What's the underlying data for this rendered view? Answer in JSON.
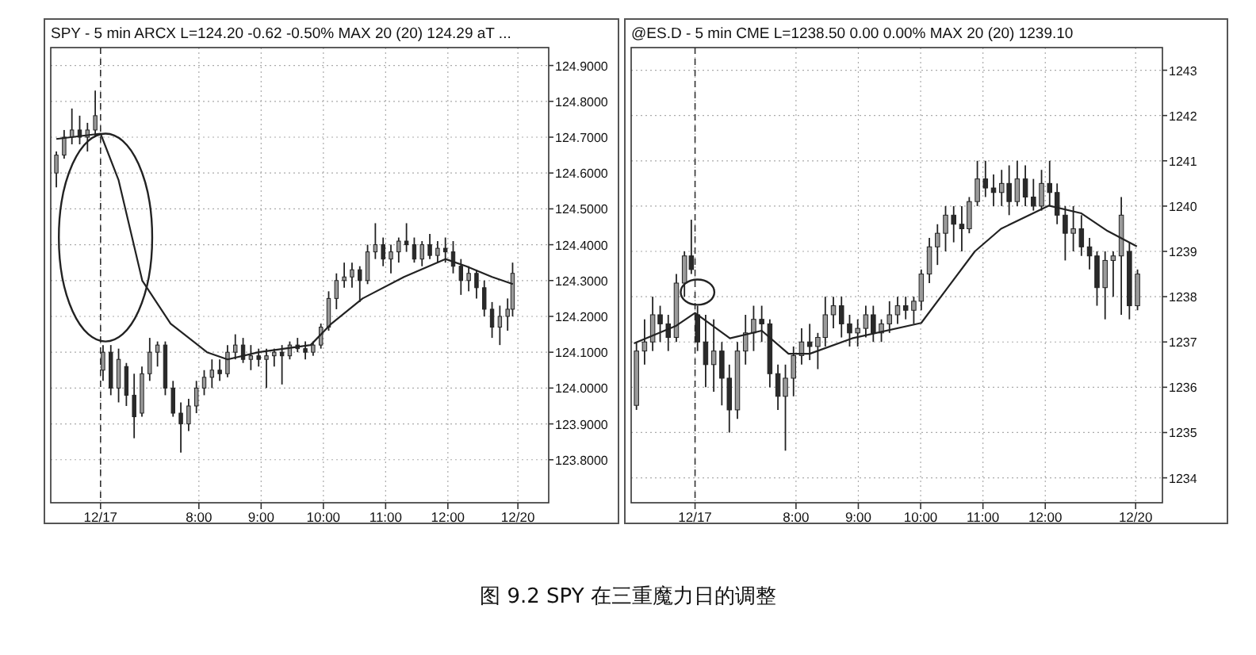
{
  "chart_data": [
    {
      "type": "candlestick",
      "title": "SPY - 5 min ARCX L=124.20 -0.62 -0.50% MAX 20 (20) 124.29 aT ...",
      "xlim": [
        5.62,
        13.62
      ],
      "ylim": [
        123.68,
        124.95
      ],
      "xticks": [
        {
          "value": 6.42,
          "label": "12/17"
        },
        {
          "value": 8,
          "label": "8:00"
        },
        {
          "value": 9,
          "label": "9:00"
        },
        {
          "value": 10,
          "label": "10:00"
        },
        {
          "value": 11,
          "label": "11:00"
        },
        {
          "value": 12,
          "label": "12:00"
        },
        {
          "value": 13.125,
          "label": "12/20"
        }
      ],
      "yticks": [
        {
          "value": 123.8,
          "label": "123.8000"
        },
        {
          "value": 123.9,
          "label": "123.9000"
        },
        {
          "value": 124,
          "label": "124.0000"
        },
        {
          "value": 124.1,
          "label": "124.1000"
        },
        {
          "value": 124.2,
          "label": "124.2000"
        },
        {
          "value": 124.3,
          "label": "124.3000"
        },
        {
          "value": 124.4,
          "label": "124.4000"
        },
        {
          "value": 124.5,
          "label": "124.5000"
        },
        {
          "value": 124.6,
          "label": "124.6000"
        },
        {
          "value": 124.7,
          "label": "124.7000"
        },
        {
          "value": 124.8,
          "label": "124.8000"
        },
        {
          "value": 124.9,
          "label": "124.9000"
        }
      ],
      "grid": true,
      "ref_lines": [
        {
          "axis": "x",
          "value": 6.42,
          "label": null,
          "line_style": "dashed",
          "color": "#333333"
        }
      ],
      "annotations": [
        "图 9.2 SPY 在三重魔力日的调整"
      ],
      "series": [
        {
          "type": "candlestick",
          "x": [
            5.71,
            5.835,
            5.96,
            6.085,
            6.21,
            6.335,
            6.46,
            6.585,
            6.71,
            6.835,
            6.96,
            7.085,
            7.21,
            7.335,
            7.46,
            7.585,
            7.71,
            7.835,
            7.96,
            8.085,
            8.21,
            8.335,
            8.46,
            8.585,
            8.71,
            8.835,
            8.96,
            9.085,
            9.21,
            9.335,
            9.46,
            9.585,
            9.71,
            9.835,
            9.96,
            10.085,
            10.21,
            10.335,
            10.46,
            10.585,
            10.71,
            10.835,
            10.96,
            11.085,
            11.21,
            11.335,
            11.46,
            11.585,
            11.71,
            11.835,
            11.96,
            12.085,
            12.21,
            12.335,
            12.46,
            12.585,
            12.71,
            12.835,
            12.96,
            13.04
          ],
          "ohlc": [
            [
              124.6,
              124.66,
              124.56,
              124.65
            ],
            [
              124.65,
              124.72,
              124.64,
              124.7
            ],
            [
              124.7,
              124.78,
              124.68,
              124.72
            ],
            [
              124.72,
              124.76,
              124.68,
              124.7
            ],
            [
              124.7,
              124.74,
              124.66,
              124.72
            ],
            [
              124.72,
              124.83,
              124.7,
              124.76
            ],
            [
              124.05,
              124.12,
              124.02,
              124.1
            ],
            [
              124.1,
              124.12,
              123.98,
              124.0
            ],
            [
              124.0,
              124.11,
              123.96,
              124.08
            ],
            [
              124.06,
              124.07,
              123.95,
              123.98
            ],
            [
              123.98,
              124.04,
              123.86,
              123.92
            ],
            [
              123.93,
              124.06,
              123.92,
              124.04
            ],
            [
              124.04,
              124.14,
              124.02,
              124.1
            ],
            [
              124.1,
              124.13,
              124.06,
              124.12
            ],
            [
              124.12,
              124.13,
              123.98,
              124.0
            ],
            [
              124.0,
              124.02,
              123.92,
              123.93
            ],
            [
              123.93,
              123.96,
              123.82,
              123.9
            ],
            [
              123.9,
              123.97,
              123.88,
              123.95
            ],
            [
              123.95,
              124.02,
              123.93,
              124.0
            ],
            [
              124.0,
              124.05,
              123.98,
              124.03
            ],
            [
              124.03,
              124.08,
              124.0,
              124.05
            ],
            [
              124.05,
              124.08,
              124.02,
              124.04
            ],
            [
              124.04,
              124.12,
              124.03,
              124.1
            ],
            [
              124.1,
              124.15,
              124.08,
              124.12
            ],
            [
              124.12,
              124.14,
              124.07,
              124.08
            ],
            [
              124.08,
              124.12,
              124.05,
              124.09
            ],
            [
              124.09,
              124.11,
              124.06,
              124.08
            ],
            [
              124.08,
              124.11,
              124.0,
              124.09
            ],
            [
              124.09,
              124.11,
              124.06,
              124.1
            ],
            [
              124.1,
              124.12,
              124.01,
              124.09
            ],
            [
              124.09,
              124.13,
              124.08,
              124.12
            ],
            [
              124.12,
              124.14,
              124.1,
              124.11
            ],
            [
              124.11,
              124.13,
              124.08,
              124.1
            ],
            [
              124.1,
              124.13,
              124.09,
              124.12
            ],
            [
              124.12,
              124.18,
              124.11,
              124.17
            ],
            [
              124.17,
              124.27,
              124.16,
              124.25
            ],
            [
              124.25,
              124.32,
              124.22,
              124.3
            ],
            [
              124.3,
              124.35,
              124.28,
              124.31
            ],
            [
              124.31,
              124.35,
              124.28,
              124.33
            ],
            [
              124.33,
              124.34,
              124.24,
              124.3
            ],
            [
              124.3,
              124.4,
              124.29,
              124.38
            ],
            [
              124.38,
              124.46,
              124.36,
              124.4
            ],
            [
              124.4,
              124.42,
              124.34,
              124.36
            ],
            [
              124.36,
              124.4,
              124.32,
              124.38
            ],
            [
              124.38,
              124.42,
              124.35,
              124.41
            ],
            [
              124.41,
              124.46,
              124.38,
              124.4
            ],
            [
              124.4,
              124.42,
              124.35,
              124.36
            ],
            [
              124.36,
              124.41,
              124.34,
              124.4
            ],
            [
              124.4,
              124.43,
              124.36,
              124.37
            ],
            [
              124.37,
              124.41,
              124.35,
              124.39
            ],
            [
              124.39,
              124.42,
              124.35,
              124.38
            ],
            [
              124.38,
              124.41,
              124.32,
              124.34
            ],
            [
              124.34,
              124.36,
              124.26,
              124.3
            ],
            [
              124.3,
              124.34,
              124.27,
              124.32
            ],
            [
              124.32,
              124.33,
              124.25,
              124.28
            ],
            [
              124.28,
              124.3,
              124.2,
              124.22
            ],
            [
              124.22,
              124.24,
              124.14,
              124.17
            ],
            [
              124.17,
              124.23,
              124.12,
              124.2
            ],
            [
              124.2,
              124.25,
              124.16,
              124.22
            ],
            [
              124.22,
              124.35,
              124.2,
              124.32
            ]
          ]
        },
        {
          "type": "line",
          "color": "#222222",
          "x": [
            5.71,
            6.42,
            6.71,
            7.09,
            7.545,
            8.13,
            8.46,
            8.96,
            9.795,
            10.13,
            10.63,
            11.295,
            11.96,
            12.295,
            12.71,
            13.045
          ],
          "values": [
            124.695,
            124.71,
            124.58,
            124.3,
            124.18,
            124.1,
            124.08,
            124.1,
            124.12,
            124.18,
            124.25,
            124.31,
            124.36,
            124.34,
            124.31,
            124.29
          ]
        }
      ]
    },
    {
      "type": "candlestick",
      "title": "@ES.D - 5 min CME L=1238.50 0.00 0.00% MAX 20 (20) 1239.10",
      "xlim": [
        5.355,
        13.88
      ],
      "ylim": [
        1233.45,
        1243.5
      ],
      "xticks": [
        {
          "value": 6.38,
          "label": "12/17"
        },
        {
          "value": 8,
          "label": "8:00"
        },
        {
          "value": 9,
          "label": "9:00"
        },
        {
          "value": 10,
          "label": "10:00"
        },
        {
          "value": 11,
          "label": "11:00"
        },
        {
          "value": 12,
          "label": "12:00"
        },
        {
          "value": 13.45,
          "label": "12/20"
        }
      ],
      "yticks": [
        1234,
        1235,
        1236,
        1237,
        1238,
        1239,
        1240,
        1241,
        1242,
        1243
      ],
      "grid": true,
      "ref_lines": [
        {
          "axis": "x",
          "value": 6.38,
          "label": null,
          "line_style": "dashed",
          "color": "#333333"
        }
      ],
      "series": [
        {
          "type": "candlestick",
          "x": [
            5.44,
            5.57,
            5.7,
            5.82,
            5.95,
            6.08,
            6.21,
            6.32,
            6.42,
            6.55,
            6.68,
            6.81,
            6.93,
            7.06,
            7.19,
            7.32,
            7.45,
            7.58,
            7.71,
            7.83,
            7.96,
            8.09,
            8.22,
            8.35,
            8.47,
            8.6,
            8.73,
            8.86,
            8.99,
            9.12,
            9.24,
            9.37,
            9.5,
            9.63,
            9.76,
            9.89,
            10.01,
            10.14,
            10.27,
            10.4,
            10.53,
            10.66,
            10.78,
            10.91,
            11.04,
            11.17,
            11.3,
            11.42,
            11.55,
            11.68,
            11.81,
            11.94,
            12.07,
            12.19,
            12.32,
            12.45,
            12.58,
            12.71,
            12.83,
            12.96,
            13.09,
            13.22,
            13.35,
            13.48
          ],
          "ohlc": [
            [
              1235.6,
              1237.0,
              1235.5,
              1236.8
            ],
            [
              1236.8,
              1237.5,
              1236.5,
              1237.0
            ],
            [
              1237.0,
              1238.0,
              1236.8,
              1237.6
            ],
            [
              1237.6,
              1237.8,
              1237.0,
              1237.4
            ],
            [
              1237.4,
              1237.6,
              1236.8,
              1237.1
            ],
            [
              1237.1,
              1238.5,
              1237.0,
              1238.3
            ],
            [
              1238.3,
              1239.0,
              1238.0,
              1238.9
            ],
            [
              1238.9,
              1239.7,
              1238.5,
              1238.6
            ],
            [
              1237.6,
              1237.8,
              1236.8,
              1237.0
            ],
            [
              1237.0,
              1237.6,
              1236.0,
              1236.5
            ],
            [
              1236.5,
              1237.5,
              1235.9,
              1236.8
            ],
            [
              1236.8,
              1237.0,
              1235.6,
              1236.2
            ],
            [
              1236.2,
              1236.5,
              1235.0,
              1235.5
            ],
            [
              1235.5,
              1237.0,
              1235.3,
              1236.8
            ],
            [
              1236.8,
              1237.6,
              1236.5,
              1237.2
            ],
            [
              1237.2,
              1237.8,
              1236.8,
              1237.5
            ],
            [
              1237.5,
              1237.8,
              1237.0,
              1237.4
            ],
            [
              1237.4,
              1237.5,
              1236.0,
              1236.3
            ],
            [
              1236.3,
              1236.5,
              1235.5,
              1235.8
            ],
            [
              1235.8,
              1236.5,
              1234.6,
              1236.2
            ],
            [
              1236.2,
              1236.9,
              1235.8,
              1236.7
            ],
            [
              1236.7,
              1237.3,
              1236.5,
              1237.0
            ],
            [
              1237.0,
              1237.4,
              1236.6,
              1236.9
            ],
            [
              1236.9,
              1237.2,
              1236.4,
              1237.1
            ],
            [
              1237.1,
              1238.0,
              1236.9,
              1237.6
            ],
            [
              1237.6,
              1238.0,
              1237.3,
              1237.8
            ],
            [
              1237.8,
              1238.0,
              1237.1,
              1237.4
            ],
            [
              1237.4,
              1237.6,
              1236.9,
              1237.2
            ],
            [
              1237.2,
              1237.5,
              1236.9,
              1237.3
            ],
            [
              1237.3,
              1237.8,
              1237.1,
              1237.6
            ],
            [
              1237.6,
              1237.8,
              1237.0,
              1237.2
            ],
            [
              1237.2,
              1237.5,
              1237.0,
              1237.4
            ],
            [
              1237.4,
              1237.9,
              1237.2,
              1237.6
            ],
            [
              1237.6,
              1238.0,
              1237.4,
              1237.8
            ],
            [
              1237.8,
              1238.0,
              1237.5,
              1237.7
            ],
            [
              1237.7,
              1238.0,
              1237.4,
              1237.9
            ],
            [
              1237.9,
              1238.6,
              1237.7,
              1238.5
            ],
            [
              1238.5,
              1239.3,
              1238.3,
              1239.1
            ],
            [
              1239.1,
              1239.6,
              1238.7,
              1239.4
            ],
            [
              1239.4,
              1240.0,
              1239.0,
              1239.8
            ],
            [
              1239.8,
              1240.0,
              1239.2,
              1239.6
            ],
            [
              1239.6,
              1240.0,
              1239.0,
              1239.5
            ],
            [
              1239.5,
              1240.2,
              1239.4,
              1240.1
            ],
            [
              1240.1,
              1241.0,
              1240.0,
              1240.6
            ],
            [
              1240.6,
              1241.0,
              1240.2,
              1240.4
            ],
            [
              1240.4,
              1240.7,
              1240.0,
              1240.3
            ],
            [
              1240.3,
              1240.8,
              1240.0,
              1240.5
            ],
            [
              1240.5,
              1240.9,
              1239.8,
              1240.1
            ],
            [
              1240.1,
              1241.0,
              1240.0,
              1240.6
            ],
            [
              1240.6,
              1240.9,
              1240.0,
              1240.2
            ],
            [
              1240.2,
              1240.6,
              1239.9,
              1240.0
            ],
            [
              1240.0,
              1240.8,
              1239.9,
              1240.5
            ],
            [
              1240.5,
              1241.0,
              1240.0,
              1240.3
            ],
            [
              1240.3,
              1240.5,
              1239.6,
              1239.8
            ],
            [
              1239.8,
              1240.0,
              1238.8,
              1239.4
            ],
            [
              1239.4,
              1240.0,
              1239.0,
              1239.5
            ],
            [
              1239.5,
              1239.8,
              1238.9,
              1239.1
            ],
            [
              1239.1,
              1239.3,
              1238.6,
              1238.9
            ],
            [
              1238.9,
              1239.0,
              1237.8,
              1238.2
            ],
            [
              1238.2,
              1239.0,
              1237.5,
              1238.8
            ],
            [
              1238.8,
              1239.0,
              1238.0,
              1238.9
            ],
            [
              1238.9,
              1240.2,
              1237.6,
              1239.8
            ],
            [
              1239.0,
              1239.2,
              1237.5,
              1237.8
            ],
            [
              1237.8,
              1238.6,
              1237.7,
              1238.5
            ]
          ]
        },
        {
          "type": "line",
          "color": "#222222",
          "x": [
            5.4,
            6.08,
            6.38,
            6.94,
            7.45,
            7.88,
            8.22,
            8.9,
            10.01,
            10.44,
            10.87,
            11.29,
            12.06,
            12.58,
            13.0,
            13.47
          ],
          "values": [
            1236.97,
            1237.36,
            1237.64,
            1237.08,
            1237.25,
            1236.74,
            1236.74,
            1237.08,
            1237.42,
            1238.21,
            1239.0,
            1239.5,
            1240.01,
            1239.84,
            1239.45,
            1239.11
          ]
        }
      ]
    }
  ]
}
